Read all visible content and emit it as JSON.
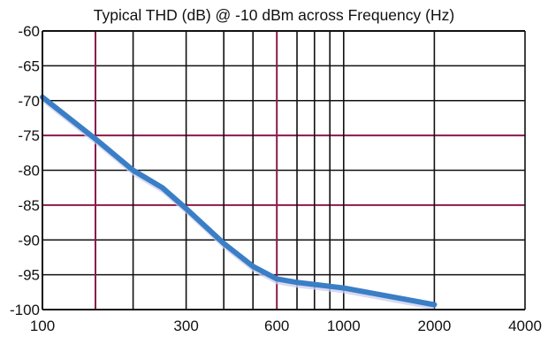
{
  "colors": {
    "background": "#ffffff",
    "axis": "#111111",
    "grid_major": "#111111",
    "grid_accent": "#8b1a4a",
    "series": "#3a7ec6",
    "series_band": "#c9cdef",
    "text": "#111111"
  },
  "chart_data": {
    "type": "line",
    "title": "Typical THD (dB) @ -10 dBm across Frequency (Hz)",
    "xlabel": "",
    "ylabel": "",
    "x_scale": "log",
    "xlim": [
      100,
      4000
    ],
    "ylim": [
      -100,
      -60
    ],
    "x_ticks": [
      {
        "value": 100,
        "label": "100"
      },
      {
        "value": 300,
        "label": "300"
      },
      {
        "value": 600,
        "label": "600"
      },
      {
        "value": 1000,
        "label": "1000"
      },
      {
        "value": 2000,
        "label": "2000"
      },
      {
        "value": 4000,
        "label": "4000"
      }
    ],
    "y_ticks": [
      {
        "value": -60,
        "label": "-60"
      },
      {
        "value": -65,
        "label": "-65"
      },
      {
        "value": -70,
        "label": "-70"
      },
      {
        "value": -75,
        "label": "-75"
      },
      {
        "value": -80,
        "label": "-80"
      },
      {
        "value": -85,
        "label": "-85"
      },
      {
        "value": -90,
        "label": "-90"
      },
      {
        "value": -95,
        "label": "-95"
      },
      {
        "value": -100,
        "label": "-100"
      }
    ],
    "grid": true,
    "x_gridlines": [
      {
        "value": 150,
        "accent": true
      },
      {
        "value": 200,
        "accent": false
      },
      {
        "value": 300,
        "accent": false
      },
      {
        "value": 400,
        "accent": false
      },
      {
        "value": 500,
        "accent": false
      },
      {
        "value": 600,
        "accent": true
      },
      {
        "value": 700,
        "accent": false
      },
      {
        "value": 800,
        "accent": false
      },
      {
        "value": 900,
        "accent": false
      },
      {
        "value": 1000,
        "accent": false
      },
      {
        "value": 2000,
        "accent": false
      },
      {
        "value": 4000,
        "accent": false
      }
    ],
    "y_gridlines": [
      {
        "value": -60,
        "accent": false
      },
      {
        "value": -65,
        "accent": false
      },
      {
        "value": -70,
        "accent": false
      },
      {
        "value": -75,
        "accent": true
      },
      {
        "value": -80,
        "accent": false
      },
      {
        "value": -85,
        "accent": true
      },
      {
        "value": -90,
        "accent": false
      },
      {
        "value": -95,
        "accent": false
      }
    ],
    "series": [
      {
        "x": [
          100,
          150,
          200,
          250,
          300,
          400,
          500,
          600,
          700,
          800,
          1000,
          1500,
          2000
        ],
        "y": [
          -69.5,
          -75.5,
          -80,
          -82.5,
          -85.5,
          -90.5,
          -93.8,
          -95.6,
          -96.1,
          -96.4,
          -96.9,
          -98.3,
          -99.3
        ]
      }
    ]
  }
}
